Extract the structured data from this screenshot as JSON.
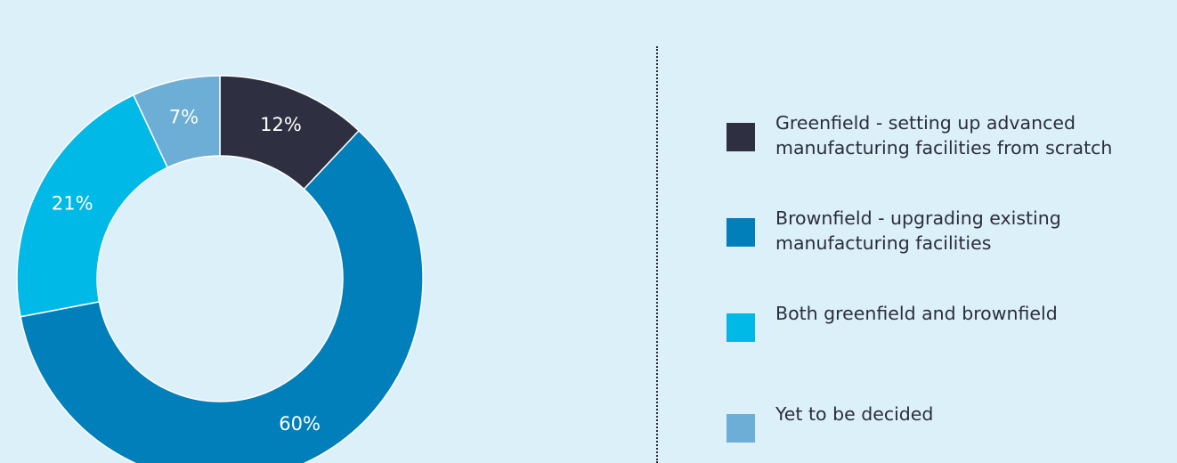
{
  "chart_data": {
    "type": "pie",
    "donut": true,
    "categories": [
      "Greenfield - setting up advanced manufacturing facilities from scratch",
      "Brownfield - upgrading existing manufacturing facilities",
      "Both greenfield and brownfield",
      "Yet to be decided"
    ],
    "values": [
      12,
      60,
      21,
      7
    ],
    "data_labels": [
      "12%",
      "60%",
      "21%",
      "7%"
    ],
    "colors": [
      "#2e2f40",
      "#007fba",
      "#00b9e6",
      "#6caed5"
    ],
    "title": "",
    "legend_position": "right"
  }
}
